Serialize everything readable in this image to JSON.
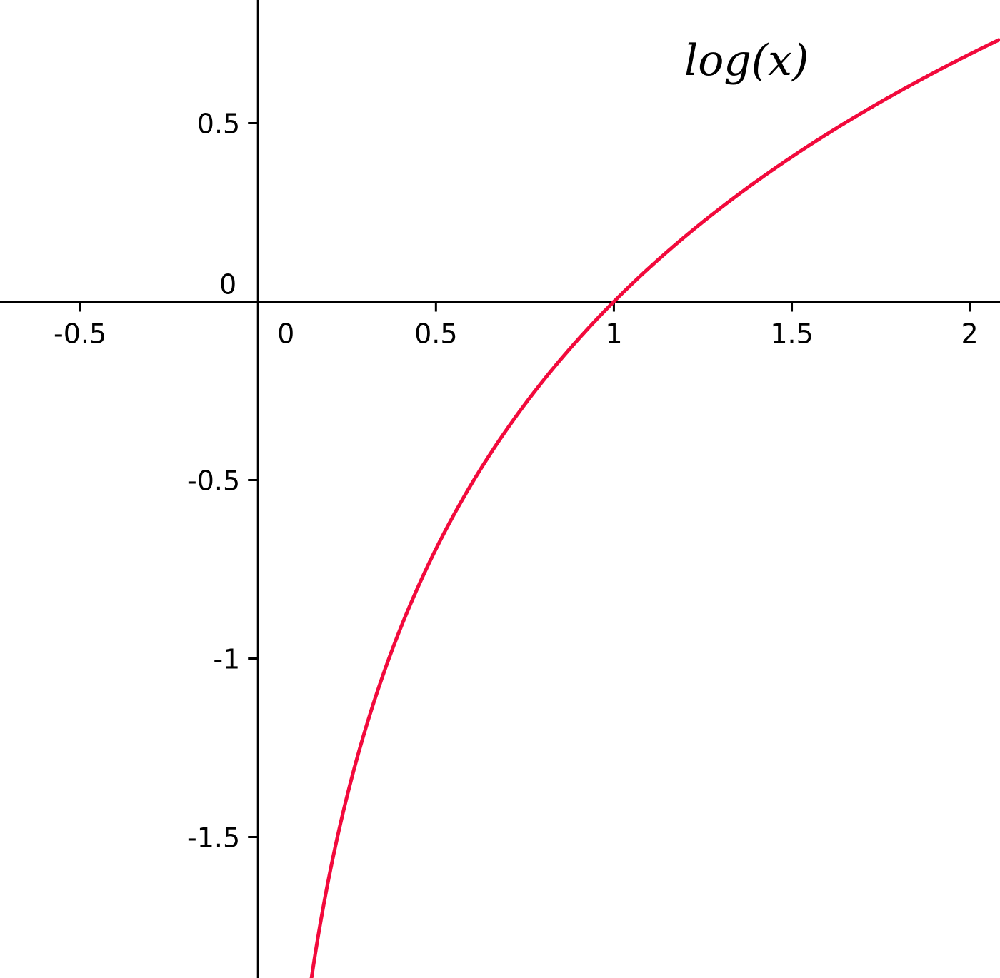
{
  "chart_data": {
    "type": "line",
    "function": "log(x)",
    "annotation": "log(x)",
    "xlim": [
      -0.725,
      2.085
    ],
    "ylim": [
      -1.895,
      0.845
    ],
    "grid": false,
    "x_ticks": [
      {
        "value": -0.5,
        "label": "-0.5"
      },
      {
        "value": 0,
        "label": "0"
      },
      {
        "value": 0.5,
        "label": "0.5"
      },
      {
        "value": 1,
        "label": "1"
      },
      {
        "value": 1.5,
        "label": "1.5"
      },
      {
        "value": 2,
        "label": "2"
      }
    ],
    "y_ticks": [
      {
        "value": 0.5,
        "label": "0.5"
      },
      {
        "value": 0,
        "label": "0"
      },
      {
        "value": -0.5,
        "label": "-0.5"
      },
      {
        "value": -1,
        "label": "-1"
      },
      {
        "value": -1.5,
        "label": "-1.5"
      }
    ],
    "series": [
      {
        "color": "#f20a3c",
        "x": [
          0.15,
          0.2,
          0.25,
          0.3,
          0.35,
          0.4,
          0.45,
          0.5,
          0.6,
          0.7,
          0.8,
          0.9,
          1.0,
          1.1,
          1.2,
          1.3,
          1.4,
          1.5,
          1.6,
          1.7,
          1.8,
          1.9,
          2.0,
          2.085
        ],
        "y": [
          -1.897,
          -1.609,
          -1.386,
          -1.204,
          -1.05,
          -0.916,
          -0.799,
          -0.693,
          -0.511,
          -0.357,
          -0.223,
          -0.105,
          0.0,
          0.095,
          0.182,
          0.262,
          0.336,
          0.405,
          0.47,
          0.531,
          0.588,
          0.642,
          0.693,
          0.735
        ]
      }
    ]
  }
}
